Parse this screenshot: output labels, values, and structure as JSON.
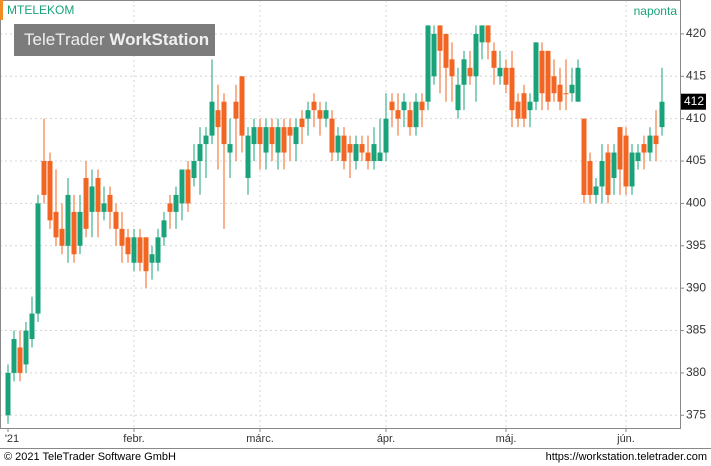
{
  "chart_data": {
    "type": "candlestick",
    "title": "MTELEKOM",
    "period": "naponta",
    "watermark": {
      "part1": "TeleTrader ",
      "part2": "WorkStation"
    },
    "footer_left": "© 2021 TeleTrader Software GmbH",
    "footer_right": "https://workstation.teletrader.com",
    "up_color": "#1aa37a",
    "down_color": "#f26522",
    "grid": true,
    "ylim": [
      373.5,
      424
    ],
    "yticks": [
      375,
      380,
      385,
      390,
      395,
      400,
      405,
      410,
      415,
      420
    ],
    "last_price": 412,
    "categories": [
      "'21",
      null,
      null,
      null,
      null,
      null,
      null,
      null,
      null,
      null,
      null,
      null,
      null,
      null,
      null,
      null,
      null,
      null,
      null,
      null,
      null,
      "febr.",
      null,
      null,
      null,
      null,
      null,
      null,
      null,
      null,
      null,
      null,
      null,
      null,
      null,
      null,
      null,
      null,
      null,
      null,
      null,
      null,
      "márc.",
      null,
      null,
      null,
      null,
      null,
      null,
      null,
      null,
      null,
      null,
      null,
      null,
      null,
      null,
      null,
      null,
      null,
      null,
      null,
      null,
      "ápr.",
      null,
      null,
      null,
      null,
      null,
      null,
      null,
      null,
      null,
      null,
      null,
      null,
      null,
      null,
      null,
      null,
      null,
      null,
      null,
      "máj.",
      null,
      null,
      null,
      null,
      null,
      null,
      null,
      null,
      null,
      null,
      null,
      null,
      null,
      null,
      null,
      null,
      null,
      null,
      null,
      "jún.",
      null,
      null,
      null,
      null,
      null,
      null
    ],
    "open": [
      375,
      380,
      383,
      381,
      384,
      387,
      405,
      405,
      399,
      397,
      395,
      399,
      395,
      403,
      399,
      403,
      399,
      401,
      399,
      397,
      396,
      393,
      396,
      396,
      393,
      393,
      396,
      400,
      399,
      400,
      404,
      403,
      405,
      407,
      408,
      411,
      412,
      406,
      412,
      415,
      403,
      407,
      409,
      406,
      409,
      406,
      409,
      409,
      407,
      410,
      410,
      412,
      411,
      410,
      410,
      406,
      408,
      407,
      405,
      407,
      406,
      405,
      405,
      406,
      412,
      411,
      411,
      411,
      409,
      412,
      412,
      415,
      421,
      420,
      417,
      411,
      414,
      416,
      415,
      419,
      421,
      418,
      415,
      416,
      416,
      412,
      413,
      411,
      412,
      418,
      418,
      415,
      414,
      413,
      413,
      412,
      410,
      405,
      401,
      402,
      406,
      403,
      409,
      408,
      402,
      405,
      407,
      406,
      408,
      409
    ],
    "high": [
      381,
      385,
      385,
      386,
      389,
      401,
      410,
      406,
      404,
      400,
      403,
      401,
      401,
      405,
      404,
      404,
      402,
      402,
      400,
      399,
      397,
      397,
      397,
      396,
      395,
      397,
      399,
      401,
      402,
      404,
      405,
      407,
      409,
      409,
      417,
      414,
      413,
      410,
      414,
      415,
      409,
      410,
      410,
      410,
      410,
      410,
      410,
      410,
      410,
      411,
      412,
      413,
      412,
      412,
      411,
      409,
      409,
      408,
      408,
      408,
      408,
      409,
      410,
      413,
      413,
      413,
      413,
      412,
      413,
      413,
      421,
      421,
      421,
      420,
      419,
      416,
      418,
      418,
      421,
      421,
      421,
      419,
      418,
      417,
      418,
      413,
      414,
      413,
      419,
      419,
      418,
      417,
      416,
      417,
      416,
      417,
      410,
      406,
      403,
      407,
      407,
      407,
      409,
      409,
      407,
      407,
      408,
      409,
      411,
      416
    ],
    "low": [
      374,
      379,
      379,
      380,
      383,
      386,
      400,
      397,
      395,
      394,
      393,
      393,
      394,
      396,
      396,
      396,
      398,
      397,
      395,
      393,
      393,
      392,
      392,
      390,
      391,
      392,
      395,
      397,
      397,
      398,
      399,
      402,
      401,
      403,
      407,
      404,
      397,
      403,
      405,
      406,
      401,
      405,
      404,
      404,
      405,
      404,
      404,
      405,
      405,
      407,
      408,
      409,
      408,
      409,
      405,
      405,
      404,
      403,
      404,
      405,
      404,
      404,
      405,
      405,
      409,
      408,
      409,
      408,
      408,
      409,
      411,
      414,
      413,
      412,
      412,
      410,
      411,
      414,
      412,
      417,
      417,
      414,
      414,
      413,
      409,
      409,
      409,
      409,
      411,
      411,
      411,
      412,
      411,
      411,
      412,
      412,
      400,
      400,
      400,
      400,
      400,
      401,
      401,
      401,
      401,
      404,
      404,
      405,
      405,
      408
    ],
    "close": [
      380,
      384,
      380,
      385,
      387,
      400,
      401,
      398,
      396,
      395,
      401,
      394,
      399,
      397,
      402,
      399,
      400,
      399,
      397,
      395,
      394,
      396,
      393,
      392,
      394,
      396,
      398,
      399,
      401,
      404,
      400,
      405,
      407,
      408,
      412,
      409,
      407,
      407,
      410,
      408,
      408,
      409,
      407,
      409,
      407,
      409,
      406,
      408,
      409,
      409,
      411,
      411,
      410,
      411,
      406,
      408,
      405,
      406,
      407,
      406,
      405,
      407,
      406,
      410,
      411,
      410,
      412,
      409,
      412,
      411,
      421,
      420,
      418,
      416,
      415,
      414,
      417,
      415,
      420,
      421,
      419,
      416,
      416,
      414,
      411,
      410,
      410,
      412,
      419,
      413,
      412,
      413,
      412,
      413,
      414,
      416,
      401,
      401,
      402,
      405,
      401,
      406,
      404,
      402,
      406,
      406,
      406,
      408,
      407,
      412
    ]
  }
}
